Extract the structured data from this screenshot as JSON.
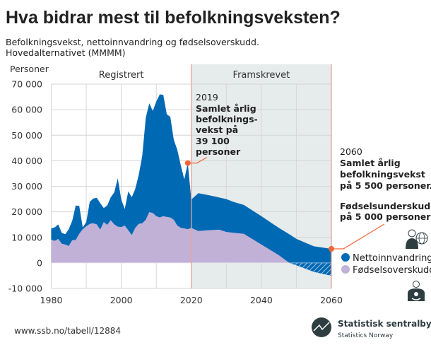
{
  "title": "Hva bidrar mest til befolkningsveksten?",
  "subtitle_lines": [
    "Befolkningsvekst, nettoinnvandring og fødselsoverskudd.",
    "Hovedalternativet (MMMM)"
  ],
  "source": "www.ssb.no/tabell/12884",
  "logo": {
    "name": "Statistisk sentralbyrå",
    "sub": "Statistics Norway"
  },
  "colors": {
    "netto": "#0069b4",
    "fodsel": "#c2b1d6",
    "projection_bg": "#e6ebeb",
    "marker": "#f26539",
    "divider": "#e8a39a",
    "grid": "#d6d6d6"
  },
  "chart_data": {
    "type": "area",
    "ylabel": "Personer",
    "xlim": [
      1980,
      2060
    ],
    "ylim": [
      -10000,
      70000
    ],
    "x_ticks": [
      "1980",
      "2000",
      "2020",
      "2040",
      "2060"
    ],
    "y_ticks": [
      "70 000",
      "60 000",
      "50 000",
      "40 000",
      "30 000",
      "20 000",
      "10 000",
      "0",
      "-10 000"
    ],
    "grid": true,
    "periods": [
      {
        "label": "Registrert",
        "from": 1980,
        "to": 2020
      },
      {
        "label": "Framskrevet",
        "from": 2020,
        "to": 2060
      }
    ],
    "x": [
      1980,
      1981,
      1982,
      1983,
      1984,
      1985,
      1986,
      1987,
      1988,
      1989,
      1990,
      1991,
      1992,
      1993,
      1994,
      1995,
      1996,
      1997,
      1998,
      1999,
      2000,
      2001,
      2002,
      2003,
      2004,
      2005,
      2006,
      2007,
      2008,
      2009,
      2010,
      2011,
      2012,
      2013,
      2014,
      2015,
      2016,
      2017,
      2018,
      2019,
      2020,
      2022,
      2025,
      2028,
      2030,
      2032,
      2035,
      2040,
      2045,
      2048,
      2050,
      2055,
      2060
    ],
    "total_growth": [
      13500,
      13900,
      15100,
      11800,
      11200,
      13200,
      16500,
      22500,
      22300,
      13900,
      16000,
      23900,
      25200,
      25500,
      23400,
      21500,
      22500,
      25700,
      27600,
      33100,
      24800,
      21100,
      28000,
      25700,
      29000,
      34500,
      42000,
      56800,
      62500,
      59500,
      63200,
      66000,
      65800,
      58200,
      57200,
      48200,
      44300,
      38200,
      32700,
      39100,
      24800,
      27300,
      26500,
      25600,
      25000,
      23900,
      22700,
      18300,
      13700,
      11200,
      9400,
      6500,
      5500
    ],
    "series": [
      {
        "name": "Nettoinnvandring",
        "color": "#0069b4"
      },
      {
        "name": "Fødselsoverskudd",
        "color": "#c2b1d6",
        "values": [
          9100,
          8600,
          9400,
          7500,
          7200,
          6600,
          8900,
          9000,
          11400,
          13200,
          14300,
          15300,
          15500,
          15100,
          13000,
          16000,
          14900,
          16700,
          15100,
          14200,
          14000,
          14600,
          12800,
          10900,
          13700,
          15300,
          15500,
          16900,
          19900,
          19500,
          18300,
          17800,
          18300,
          18000,
          17800,
          16900,
          14600,
          13700,
          13500,
          13200,
          13700,
          12500,
          12800,
          13000,
          12100,
          11800,
          11400,
          7200,
          3000,
          0,
          -900,
          -3500,
          -5000
        ]
      }
    ],
    "annotations": [
      {
        "year": 2019,
        "value": 39100,
        "label_year": "2019",
        "lines": [
          "Samlet årlig",
          "befolknings-",
          "vekst på",
          "39 100",
          "personer"
        ]
      },
      {
        "year": 2060,
        "value": 5500,
        "label_year": "2060",
        "lines": [
          "Samlet årlig",
          "befolkningsvekst",
          "på 5 500 personer."
        ],
        "lines2": [
          "Fødselsunderskudd",
          "på 5 000 personer"
        ]
      }
    ]
  }
}
